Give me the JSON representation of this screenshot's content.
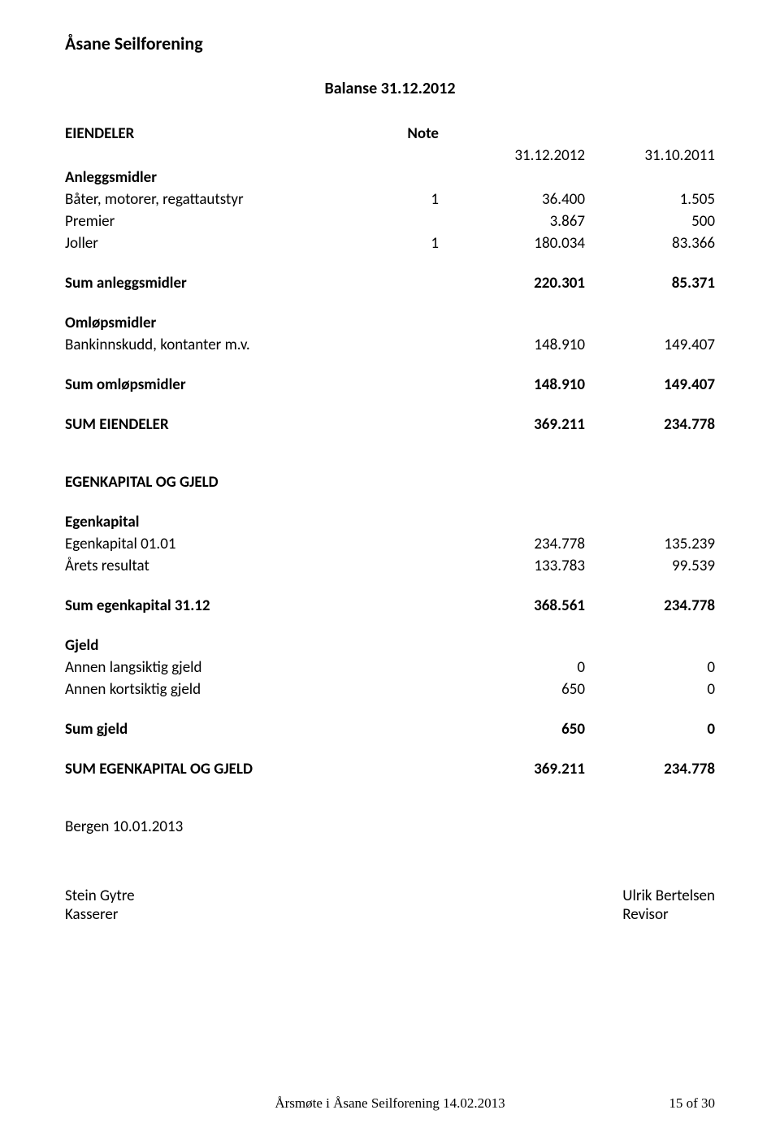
{
  "org_name": "Åsane Seilforening",
  "balance_title": "Balanse 31.12.2012",
  "headers": {
    "eiendeler": "EIENDELER",
    "note": "Note",
    "date_a": "31.12.2012",
    "date_b": "31.10.2011"
  },
  "anleggsmidler": {
    "heading": "Anleggsmidler",
    "rows": [
      {
        "label": "Båter, motorer, regattautstyr",
        "note": "1",
        "a": "36.400",
        "b": "1.505"
      },
      {
        "label": "Premier",
        "note": "",
        "a": "3.867",
        "b": "500"
      },
      {
        "label": "Joller",
        "note": "1",
        "a": "180.034",
        "b": "83.366"
      }
    ],
    "sum": {
      "label": "Sum anleggsmidler",
      "a": "220.301",
      "b": "85.371"
    }
  },
  "omlopsmidler": {
    "heading": "Omløpsmidler",
    "rows": [
      {
        "label": "Bankinnskudd, kontanter m.v.",
        "note": "",
        "a": "148.910",
        "b": "149.407"
      }
    ],
    "sum": {
      "label": "Sum omløpsmidler",
      "a": "148.910",
      "b": "149.407"
    }
  },
  "sum_eiendeler": {
    "label": "SUM EIENDELER",
    "a": "369.211",
    "b": "234.778"
  },
  "egenkapital_og_gjeld_heading": "EGENKAPITAL OG GJELD",
  "egenkapital": {
    "heading": "Egenkapital",
    "rows": [
      {
        "label": "Egenkapital 01.01",
        "a": "234.778",
        "b": "135.239"
      },
      {
        "label": "Årets resultat",
        "a": "133.783",
        "b": "99.539"
      }
    ],
    "sum": {
      "label": "Sum egenkapital 31.12",
      "a": "368.561",
      "b": "234.778"
    }
  },
  "gjeld": {
    "heading": "Gjeld",
    "rows": [
      {
        "label": "Annen langsiktig gjeld",
        "a": "0",
        "b": "0"
      },
      {
        "label": "Annen kortsiktig gjeld",
        "a": "650",
        "b": "0"
      }
    ],
    "sum": {
      "label": "Sum gjeld",
      "a": "650",
      "b": "0"
    }
  },
  "sum_ek_gjeld": {
    "label": "SUM EGENKAPITAL OG GJELD",
    "a": "369.211",
    "b": "234.778"
  },
  "place_date": "Bergen 10.01.2013",
  "signatures": {
    "left_name": "Stein Gytre",
    "left_role": "Kasserer",
    "right_name": "Ulrik Bertelsen",
    "right_role": "Revisor"
  },
  "footer": {
    "center": "Årsmøte i Åsane Seilforening 14.02.2013",
    "right": "15 of 30"
  }
}
